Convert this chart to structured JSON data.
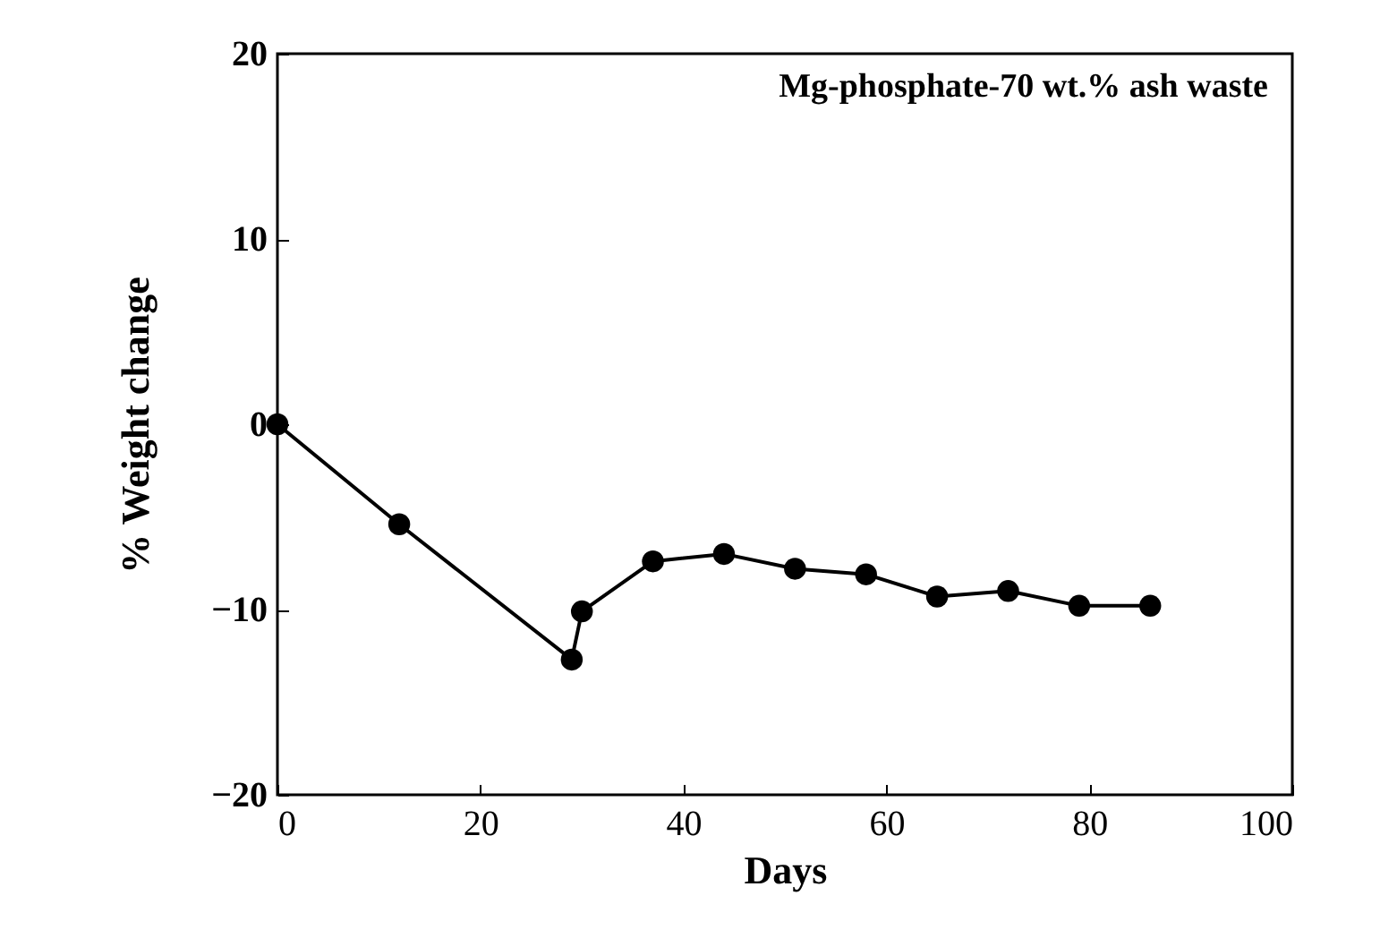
{
  "chart_data": {
    "type": "line",
    "title": "Mg-phosphate-70 wt.% ash waste",
    "xlabel": "Days",
    "ylabel": "% Weight change",
    "x": [
      0,
      12,
      29,
      30,
      37,
      44,
      51,
      58,
      65,
      72,
      79,
      86
    ],
    "series": [
      {
        "color": "#000000",
        "values": [
          0,
          -5.4,
          -12.7,
          -10.1,
          -7.4,
          -7.0,
          -7.8,
          -8.1,
          -9.3,
          -9.0,
          -9.8,
          -9.8
        ]
      }
    ],
    "xlim": [
      0,
      100
    ],
    "xticks": [
      0,
      20,
      40,
      60,
      80,
      100
    ],
    "ylim": [
      -20,
      20
    ],
    "yticks": [
      -20,
      -10,
      0,
      10,
      20
    ],
    "grid": false,
    "legend": false,
    "marker": "circle",
    "line_style": "solid"
  }
}
